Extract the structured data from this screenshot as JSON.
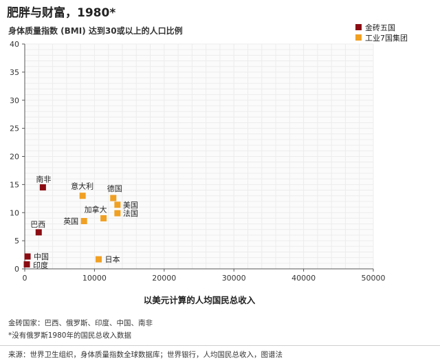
{
  "title": "肥胖与财富，1980*",
  "subtitle": "身体质量指数 (BMI) 达到30或以上的人口比例",
  "legend": [
    {
      "label": "金砖五国",
      "color": "#8b0d13"
    },
    {
      "label": "工业7国集团",
      "color": "#f0a023"
    }
  ],
  "chart_data": {
    "type": "scatter",
    "xlabel": "以美元计算的人均国民总收入",
    "ylabel": "",
    "xlim": [
      0,
      50000
    ],
    "ylim": [
      0,
      40
    ],
    "x_ticks": [
      "0",
      "10000",
      "20000",
      "30000",
      "40000",
      "50000"
    ],
    "y_ticks": [
      "0",
      "5",
      "10",
      "15",
      "20",
      "25",
      "30",
      "35",
      "40"
    ],
    "grid": true,
    "legend_position": "top-right",
    "series": [
      {
        "name": "金砖五国",
        "color": "#8b0d13",
        "points": [
          {
            "label": "南非",
            "x": 2600,
            "y": 14.5
          },
          {
            "label": "巴西",
            "x": 2000,
            "y": 6.5
          },
          {
            "label": "中国",
            "x": 400,
            "y": 2.2
          },
          {
            "label": "印度",
            "x": 300,
            "y": 0.8
          }
        ]
      },
      {
        "name": "工业7国集团",
        "color": "#f0a023",
        "points": [
          {
            "label": "意大利",
            "x": 8300,
            "y": 13.0
          },
          {
            "label": "德国",
            "x": 12700,
            "y": 12.6
          },
          {
            "label": "美国",
            "x": 13300,
            "y": 11.4
          },
          {
            "label": "法国",
            "x": 13300,
            "y": 9.9
          },
          {
            "label": "加拿大",
            "x": 11300,
            "y": 9.0
          },
          {
            "label": "英国",
            "x": 8500,
            "y": 8.5
          },
          {
            "label": "日本",
            "x": 10600,
            "y": 1.7
          }
        ]
      }
    ]
  },
  "notes": {
    "members": "金砖国家：巴西、俄罗斯、印度、中国、南非",
    "asterisk": "*没有俄罗斯1980年的国民总收入数据",
    "source": "来源：世界卫生组织，身体质量指数全球数据库；世界银行，人均国民总收入，图谱法"
  }
}
